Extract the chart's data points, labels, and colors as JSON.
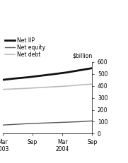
{
  "ylabel": "$billion",
  "ylim": [
    0,
    600
  ],
  "yticks": [
    0,
    100,
    200,
    300,
    400,
    500,
    600
  ],
  "x_labels": [
    "Mar\n2003",
    "Sep",
    "Mar\n2004",
    "Sep"
  ],
  "x_positions": [
    0,
    1,
    2,
    3
  ],
  "net_iip": [
    450,
    462,
    472,
    485,
    498,
    512,
    530,
    548
  ],
  "net_equity": [
    72,
    78,
    84,
    88,
    92,
    96,
    100,
    107
  ],
  "net_debt": [
    370,
    375,
    380,
    386,
    392,
    398,
    407,
    415
  ],
  "net_iip_color": "#111111",
  "net_equity_color": "#555555",
  "net_debt_color": "#bbbbbb",
  "net_iip_lw": 2.0,
  "net_equity_lw": 1.0,
  "net_debt_lw": 1.2,
  "legend_labels": [
    "Net IIP",
    "Net equity",
    "Net debt"
  ],
  "background_color": "#ffffff",
  "tick_fontsize": 5.5,
  "legend_fontsize": 5.5
}
